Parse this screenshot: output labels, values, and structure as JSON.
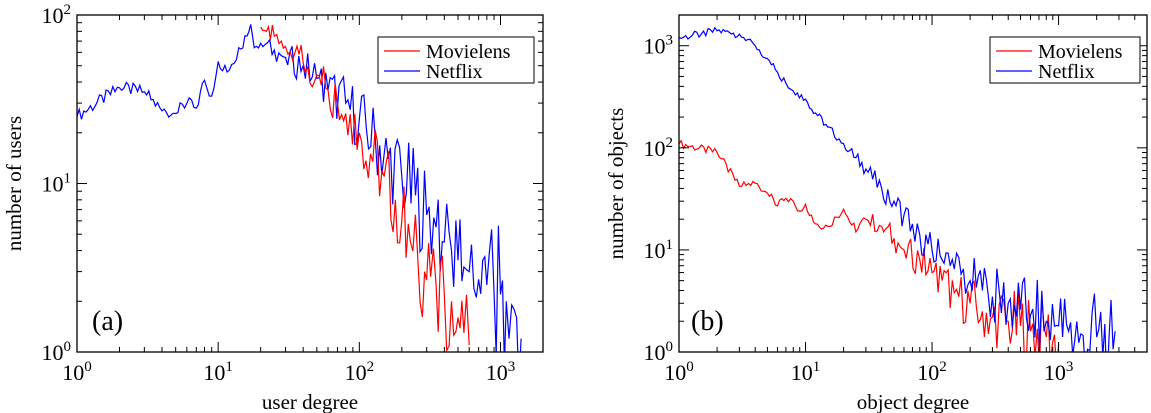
{
  "chart_data": [
    {
      "type": "line",
      "panel_label": "(a)",
      "xlabel": "user degree",
      "ylabel": "number of users",
      "x_scale": "log",
      "y_scale": "log",
      "xlim": [
        1,
        2000
      ],
      "ylim": [
        1,
        100
      ],
      "x_ticks": [
        {
          "base": "10",
          "exp": "0"
        },
        {
          "base": "10",
          "exp": "1"
        },
        {
          "base": "10",
          "exp": "2"
        },
        {
          "base": "10",
          "exp": "3"
        }
      ],
      "y_ticks": [
        {
          "base": "10",
          "exp": "0"
        },
        {
          "base": "10",
          "exp": "1"
        },
        {
          "base": "10",
          "exp": "2"
        }
      ],
      "legend": {
        "position": "top-right",
        "entries": [
          "Movielens",
          "Netflix"
        ]
      },
      "series": [
        {
          "name": "Netflix",
          "color": "#0000ff",
          "x": [
            1,
            2,
            3,
            4,
            5,
            6,
            7,
            8,
            9,
            10,
            12,
            14,
            16,
            17,
            18,
            20,
            25,
            30,
            40,
            50,
            60,
            80,
            100,
            130,
            160,
            200,
            250,
            300,
            350,
            400,
            450,
            500,
            550,
            600,
            700,
            800,
            900,
            1000,
            1100,
            1200,
            1300,
            1400
          ],
          "y": [
            25,
            37,
            35,
            27,
            26,
            30,
            28,
            41,
            33,
            53,
            47,
            64,
            75,
            88,
            64,
            68,
            62,
            56,
            50,
            42,
            36,
            30,
            24,
            18,
            14,
            11,
            8.5,
            6.5,
            5.5,
            4.5,
            4,
            3.5,
            3.2,
            3,
            2.7,
            2.5,
            2.3,
            2.2,
            2,
            1.9,
            1.6,
            1.2
          ]
        },
        {
          "name": "Movielens",
          "color": "#ff0000",
          "x": [
            20,
            22,
            25,
            28,
            30,
            35,
            40,
            50,
            60,
            70,
            80,
            100,
            120,
            150,
            180,
            200,
            230,
            260,
            290,
            320,
            350,
            400,
            450,
            500,
            550,
            600
          ],
          "y": [
            85,
            80,
            75,
            70,
            65,
            60,
            52,
            44,
            36,
            30,
            26,
            20,
            15,
            11,
            8,
            6,
            4.5,
            3.5,
            3,
            2.8,
            2.5,
            2.2,
            2,
            1.6,
            1.3,
            1.1
          ]
        }
      ]
    },
    {
      "type": "line",
      "panel_label": "(b)",
      "xlabel": "object degree",
      "ylabel": "number of objects",
      "x_scale": "log",
      "y_scale": "log",
      "xlim": [
        1,
        5000
      ],
      "ylim": [
        1,
        2000
      ],
      "x_ticks": [
        {
          "base": "10",
          "exp": "0"
        },
        {
          "base": "10",
          "exp": "1"
        },
        {
          "base": "10",
          "exp": "2"
        },
        {
          "base": "10",
          "exp": "3"
        }
      ],
      "y_ticks": [
        {
          "base": "10",
          "exp": "0"
        },
        {
          "base": "10",
          "exp": "1"
        },
        {
          "base": "10",
          "exp": "2"
        },
        {
          "base": "10",
          "exp": "3"
        }
      ],
      "legend": {
        "position": "top-right",
        "entries": [
          "Movielens",
          "Netflix"
        ]
      },
      "series": [
        {
          "name": "Movielens",
          "color": "#ff0000",
          "x": [
            1,
            2,
            3,
            4,
            5,
            6,
            7,
            8,
            9,
            10,
            12,
            15,
            20,
            25,
            30,
            40,
            50,
            60,
            80,
            100,
            120,
            150,
            200,
            250,
            300,
            400,
            500,
            600,
            800,
            1000
          ],
          "y": [
            110,
            90,
            42,
            45,
            36,
            27,
            32,
            30,
            24,
            28,
            18,
            17,
            25,
            15,
            20,
            17,
            13,
            10,
            8,
            6,
            5,
            3.8,
            3,
            2.5,
            2.2,
            2,
            1.8,
            1.6,
            1.4,
            1.2
          ]
        },
        {
          "name": "Netflix",
          "color": "#0000ff",
          "x": [
            1,
            1.5,
            2,
            2.5,
            3,
            3.5,
            4,
            5,
            6,
            7,
            8,
            10,
            12,
            15,
            20,
            25,
            30,
            40,
            50,
            60,
            70,
            80,
            100,
            120,
            150,
            200,
            250,
            300,
            400,
            500,
            600,
            800,
            1000,
            1200,
            1500,
            2000,
            2500,
            2800
          ],
          "y": [
            1200,
            1300,
            1400,
            1350,
            1300,
            1150,
            1000,
            750,
            550,
            430,
            360,
            300,
            220,
            160,
            110,
            80,
            62,
            40,
            30,
            22,
            18,
            14,
            10,
            8,
            6.5,
            5,
            4,
            3.5,
            3,
            2.6,
            2.3,
            2,
            1.8,
            1.6,
            1.5,
            1.4,
            1.3,
            1.6
          ]
        }
      ]
    }
  ]
}
